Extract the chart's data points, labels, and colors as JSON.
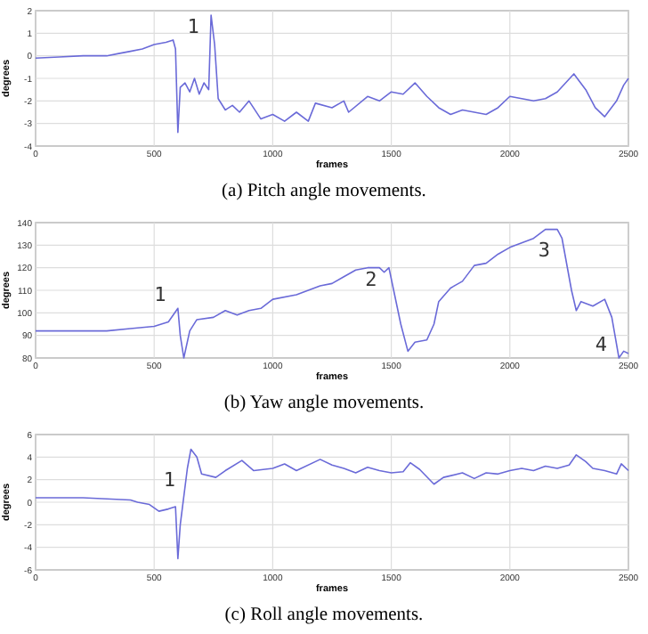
{
  "chart_data": [
    {
      "type": "line",
      "title": "(a) Pitch angle movements.",
      "xlabel": "frames",
      "ylabel": "degrees",
      "xlim": [
        0,
        2500
      ],
      "xticks": [
        0,
        500,
        1000,
        1500,
        2000,
        2500
      ],
      "ylim": [
        -4,
        2
      ],
      "yticks": [
        -4,
        -3,
        -2,
        -1,
        0,
        1,
        2
      ],
      "grid": true,
      "series": [
        {
          "color": "#6a6ad8",
          "x": [
            0,
            100,
            200,
            300,
            350,
            400,
            450,
            500,
            550,
            580,
            590,
            600,
            610,
            630,
            650,
            670,
            690,
            710,
            730,
            740,
            755,
            770,
            800,
            830,
            860,
            900,
            950,
            1000,
            1050,
            1100,
            1150,
            1180,
            1250,
            1300,
            1320,
            1400,
            1450,
            1500,
            1550,
            1600,
            1650,
            1700,
            1750,
            1800,
            1900,
            1950,
            2000,
            2050,
            2100,
            2150,
            2200,
            2270,
            2320,
            2360,
            2400,
            2450,
            2480,
            2500
          ],
          "values": [
            -0.1,
            -0.05,
            0,
            0,
            0.1,
            0.2,
            0.3,
            0.5,
            0.6,
            0.7,
            0.3,
            -3.4,
            -1.4,
            -1.2,
            -1.6,
            -1,
            -1.7,
            -1.2,
            -1.5,
            1.8,
            0.5,
            -1.9,
            -2.4,
            -2.2,
            -2.5,
            -2,
            -2.8,
            -2.6,
            -2.9,
            -2.5,
            -2.9,
            -2.1,
            -2.3,
            -2,
            -2.5,
            -1.8,
            -2,
            -1.6,
            -1.7,
            -1.2,
            -1.8,
            -2.3,
            -2.6,
            -2.4,
            -2.6,
            -2.3,
            -1.8,
            -1.9,
            -2,
            -1.9,
            -1.6,
            -0.8,
            -1.5,
            -2.3,
            -2.7,
            -2,
            -1.3,
            -1
          ]
        }
      ],
      "annotations": [
        {
          "text": "1",
          "x": 740,
          "y": 1.8
        }
      ]
    },
    {
      "type": "line",
      "title": "(b) Yaw angle movements.",
      "xlabel": "frames",
      "ylabel": "degrees",
      "xlim": [
        0,
        2500
      ],
      "xticks": [
        0,
        500,
        1000,
        1500,
        2000,
        2500
      ],
      "ylim": [
        80,
        140
      ],
      "yticks": [
        80,
        90,
        100,
        110,
        120,
        130,
        140
      ],
      "grid": true,
      "series": [
        {
          "color": "#6a6ad8",
          "x": [
            0,
            300,
            400,
            500,
            560,
            600,
            610,
            625,
            650,
            680,
            750,
            800,
            850,
            900,
            950,
            1000,
            1100,
            1200,
            1250,
            1300,
            1350,
            1400,
            1450,
            1470,
            1490,
            1510,
            1540,
            1570,
            1600,
            1650,
            1680,
            1700,
            1750,
            1800,
            1850,
            1900,
            1950,
            2000,
            2050,
            2100,
            2150,
            2200,
            2220,
            2260,
            2280,
            2300,
            2350,
            2400,
            2430,
            2460,
            2480,
            2500
          ],
          "values": [
            92,
            92,
            93,
            94,
            96,
            102,
            90,
            80,
            92,
            97,
            98,
            101,
            99,
            101,
            102,
            106,
            108,
            112,
            113,
            116,
            119,
            120,
            120,
            118,
            120,
            110,
            95,
            83,
            87,
            88,
            95,
            105,
            111,
            114,
            121,
            122,
            126,
            129,
            131,
            133,
            137,
            137,
            133,
            110,
            101,
            105,
            103,
            106,
            98,
            80,
            83,
            82
          ]
        }
      ],
      "annotations": [
        {
          "text": "1",
          "x": 600,
          "y": 102
        },
        {
          "text": "2",
          "x": 1490,
          "y": 120
        },
        {
          "text": "3",
          "x": 2220,
          "y": 133
        },
        {
          "text": "4",
          "x": 2460,
          "y": 80
        }
      ]
    },
    {
      "type": "line",
      "title": "(c) Roll angle movements.",
      "xlabel": "frames",
      "ylabel": "degrees",
      "xlim": [
        0,
        2500
      ],
      "xticks": [
        0,
        500,
        1000,
        1500,
        2000,
        2500
      ],
      "ylim": [
        -6,
        6
      ],
      "yticks": [
        -6,
        -4,
        -2,
        0,
        2,
        4,
        6
      ],
      "grid": true,
      "series": [
        {
          "color": "#6a6ad8",
          "x": [
            0,
            100,
            200,
            400,
            430,
            480,
            520,
            560,
            590,
            600,
            610,
            640,
            655,
            680,
            700,
            760,
            800,
            870,
            920,
            1000,
            1050,
            1100,
            1200,
            1250,
            1300,
            1350,
            1400,
            1450,
            1500,
            1550,
            1580,
            1620,
            1680,
            1720,
            1800,
            1850,
            1900,
            1950,
            2000,
            2050,
            2100,
            2150,
            2200,
            2250,
            2280,
            2320,
            2350,
            2400,
            2450,
            2470,
            2500
          ],
          "values": [
            0.4,
            0.4,
            0.4,
            0.2,
            0,
            -0.2,
            -0.8,
            -0.6,
            -0.4,
            -5,
            -2,
            3,
            4.7,
            4,
            2.5,
            2.2,
            2.8,
            3.7,
            2.8,
            3,
            3.4,
            2.8,
            3.8,
            3.3,
            3,
            2.6,
            3.1,
            2.8,
            2.6,
            2.7,
            3.5,
            2.9,
            1.6,
            2.2,
            2.6,
            2.1,
            2.6,
            2.5,
            2.8,
            3,
            2.8,
            3.2,
            3,
            3.3,
            4.2,
            3.6,
            3,
            2.8,
            2.5,
            3.4,
            2.8
          ]
        }
      ],
      "annotations": [
        {
          "text": "1",
          "x": 640,
          "y": 3
        }
      ]
    }
  ]
}
